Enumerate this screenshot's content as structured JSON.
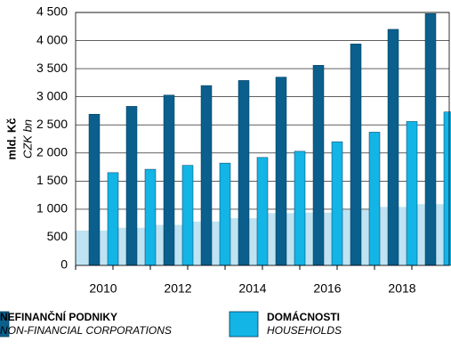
{
  "chart_data": {
    "type": "bar",
    "ylabel": "mld. Kč",
    "ylabel_en": "CZK bn",
    "categories": [
      "2010",
      null,
      "2012",
      null,
      "2014",
      null,
      "2016",
      null,
      "2018",
      null
    ],
    "series": [
      {
        "name": "NEFINANČNÍ PODNIKY",
        "name_en": "NON-FINANCIAL CORPORATIONS",
        "color": "#0a5f8c",
        "values": [
          2690,
          2830,
          3030,
          3200,
          3290,
          3350,
          3560,
          3940,
          4200,
          4480
        ]
      },
      {
        "name": "DOMÁCNOSTI",
        "name_en": "HOUSEHOLDS",
        "color": "#13b4e6",
        "values": [
          1650,
          1710,
          1780,
          1820,
          1920,
          2030,
          2200,
          2370,
          2560,
          2730
        ]
      },
      {
        "color": "#bfe3f2",
        "values": [
          620,
          670,
          720,
          780,
          840,
          930,
          940,
          990,
          1040,
          1090
        ]
      }
    ],
    "ylim": [
      0,
      4500
    ],
    "yticks": [
      0,
      500,
      {
        "value": 1000,
        "label": "1 000"
      },
      {
        "value": 1500,
        "label": "1 500"
      },
      {
        "value": 2000,
        "label": "2 000"
      },
      {
        "value": 2500,
        "label": "2 500"
      },
      {
        "value": 3000,
        "label": "3 000"
      },
      {
        "value": 3500,
        "label": "3 500"
      },
      {
        "value": 4000,
        "label": "4 000"
      },
      {
        "value": 4500,
        "label": "4 500"
      }
    ],
    "grid": true
  }
}
